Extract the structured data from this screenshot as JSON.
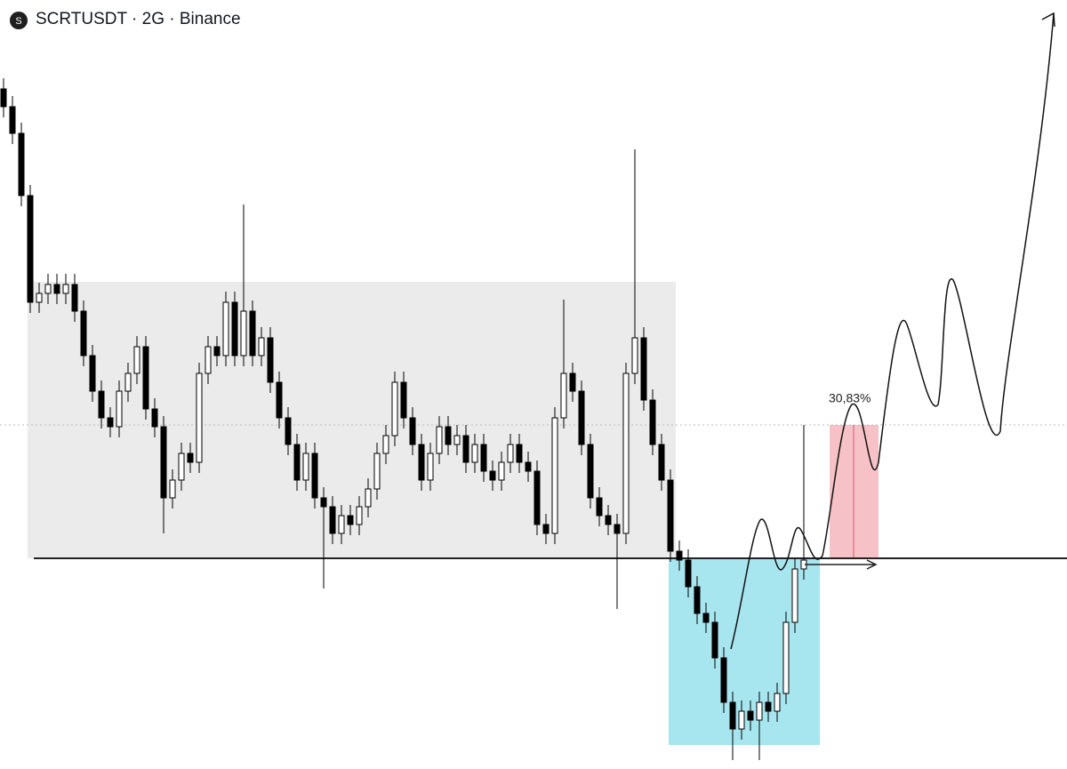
{
  "chart_data": {
    "type": "candlestick",
    "title": "SCRTUSDT · 2G · Binance",
    "annotation": "30,83%",
    "ylim": [
      0,
      865
    ],
    "up_color": "#ffffff",
    "down_color": "#000000",
    "open": [
      765,
      745,
      715,
      645,
      525,
      535,
      545,
      535,
      545,
      515,
      465,
      425,
      395,
      385,
      425,
      445,
      475,
      405,
      385,
      305,
      325,
      355,
      345,
      445,
      475,
      465,
      525,
      465,
      515,
      465,
      485,
      435,
      395,
      365,
      325,
      355,
      305,
      295,
      265,
      285,
      275,
      295,
      315,
      355,
      375,
      435,
      395,
      365,
      325,
      355,
      385,
      365,
      375,
      345,
      365,
      335,
      325,
      345,
      365,
      345,
      335,
      275,
      265,
      395,
      445,
      425,
      365,
      305,
      285,
      275,
      265,
      445,
      485,
      415,
      365,
      325,
      245,
      235,
      205,
      175,
      165,
      125,
      75,
      45,
      65,
      55,
      75,
      65,
      85,
      165,
      225
    ],
    "high": [
      777,
      757,
      727,
      657,
      547,
      557,
      557,
      557,
      557,
      527,
      477,
      437,
      407,
      437,
      457,
      487,
      487,
      417,
      397,
      337,
      367,
      367,
      457,
      487,
      487,
      537,
      537,
      635,
      527,
      497,
      497,
      447,
      407,
      377,
      367,
      367,
      317,
      307,
      297,
      297,
      307,
      327,
      367,
      387,
      447,
      447,
      407,
      377,
      367,
      397,
      397,
      387,
      387,
      377,
      377,
      347,
      357,
      377,
      377,
      357,
      347,
      287,
      407,
      528,
      457,
      437,
      377,
      317,
      297,
      287,
      457,
      697,
      497,
      427,
      377,
      337,
      257,
      247,
      217,
      187,
      177,
      137,
      87,
      77,
      77,
      87,
      87,
      97,
      177,
      237,
      387
    ],
    "low": [
      733,
      703,
      633,
      513,
      513,
      523,
      523,
      523,
      503,
      453,
      413,
      383,
      373,
      373,
      413,
      433,
      393,
      373,
      265,
      293,
      313,
      333,
      333,
      433,
      453,
      453,
      453,
      453,
      453,
      453,
      423,
      383,
      353,
      313,
      313,
      293,
      203,
      253,
      253,
      263,
      263,
      283,
      303,
      343,
      363,
      383,
      353,
      313,
      313,
      343,
      353,
      353,
      333,
      333,
      323,
      313,
      313,
      333,
      333,
      323,
      263,
      253,
      253,
      383,
      413,
      353,
      293,
      273,
      263,
      180,
      253,
      433,
      403,
      353,
      313,
      233,
      223,
      193,
      163,
      153,
      113,
      63,
      10,
      33,
      43,
      10,
      53,
      53,
      73,
      153,
      213
    ],
    "close": [
      745,
      715,
      645,
      525,
      535,
      545,
      535,
      545,
      515,
      465,
      425,
      395,
      385,
      425,
      445,
      475,
      405,
      385,
      305,
      325,
      355,
      345,
      445,
      475,
      465,
      525,
      465,
      515,
      465,
      485,
      435,
      395,
      365,
      325,
      355,
      305,
      295,
      265,
      285,
      275,
      295,
      315,
      355,
      375,
      435,
      395,
      365,
      325,
      355,
      385,
      365,
      375,
      345,
      365,
      335,
      325,
      345,
      365,
      345,
      335,
      275,
      265,
      395,
      445,
      425,
      365,
      305,
      285,
      275,
      265,
      445,
      485,
      415,
      365,
      325,
      245,
      235,
      205,
      175,
      165,
      125,
      75,
      45,
      65,
      55,
      75,
      65,
      85,
      165,
      225,
      235
    ]
  }
}
